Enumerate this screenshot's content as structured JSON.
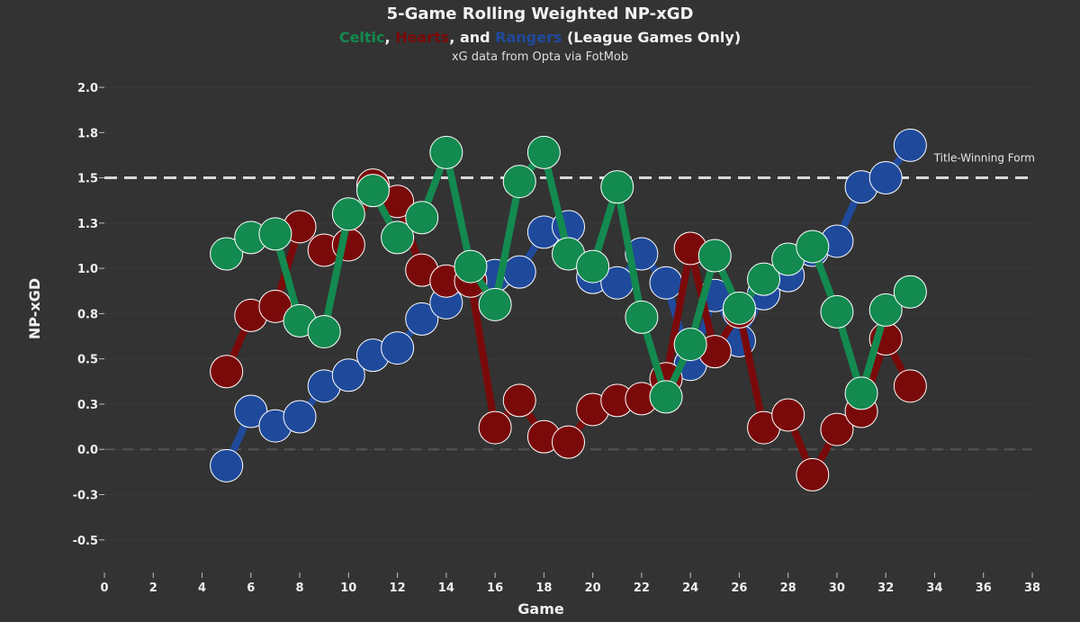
{
  "header": {
    "title": "5-Game Rolling Weighted NP-xGD",
    "subtitle_parts": [
      {
        "text": "Celtic",
        "color": "#138a4f"
      },
      {
        "text": ", ",
        "color": "#f2f2f2"
      },
      {
        "text": "Hearts",
        "color": "#7a0a0a"
      },
      {
        "text": ", and ",
        "color": "#f2f2f2"
      },
      {
        "text": "Rangers",
        "color": "#1f4a9c"
      },
      {
        "text": " (League Games Only)",
        "color": "#f2f2f2"
      }
    ],
    "source": "xG data from Opta via FotMob"
  },
  "chart_data": {
    "type": "line",
    "title": "5-Game Rolling Weighted NP-xGD",
    "xlabel": "Game",
    "ylabel": "NP-xGD",
    "xlim": [
      0,
      38
    ],
    "ylim": [
      -0.7,
      2.0
    ],
    "x_ticks": [
      0,
      2,
      4,
      6,
      8,
      10,
      12,
      14,
      16,
      18,
      20,
      22,
      24,
      26,
      28,
      30,
      32,
      34,
      36,
      38
    ],
    "y_ticks": [
      -0.5,
      -0.25,
      0.0,
      0.25,
      0.5,
      0.75,
      1.0,
      1.25,
      1.5,
      1.75,
      2.0
    ],
    "y_tick_labels": [
      "-0.5",
      "-0.3",
      "0.0",
      "0.3",
      "0.5",
      "0.8",
      "1.0",
      "1.3",
      "1.5",
      "1.8",
      "2.0"
    ],
    "reference_lines": [
      {
        "y": 1.5,
        "label": "Title-Winning Form",
        "style": "dashed",
        "color": "#d9d9d9"
      },
      {
        "y": 0.0,
        "label": "",
        "style": "dashed",
        "color": "#555555"
      }
    ],
    "series": [
      {
        "name": "Rangers",
        "color": "#1f4a9c",
        "x": [
          5,
          6,
          7,
          8,
          9,
          10,
          11,
          12,
          13,
          14,
          15,
          16,
          17,
          18,
          19,
          20,
          21,
          22,
          23,
          24,
          25,
          26,
          27,
          28,
          29,
          30,
          31,
          32,
          33
        ],
        "values": [
          -0.09,
          0.21,
          0.13,
          0.18,
          0.35,
          0.41,
          0.52,
          0.56,
          0.72,
          0.81,
          0.94,
          0.96,
          0.98,
          1.2,
          1.23,
          0.95,
          0.92,
          1.08,
          0.92,
          0.47,
          0.85,
          0.6,
          0.86,
          0.96,
          1.1,
          1.15,
          1.45,
          1.5,
          1.68
        ]
      },
      {
        "name": "Hearts",
        "color": "#7a0a0a",
        "x": [
          5,
          6,
          7,
          8,
          9,
          10,
          11,
          12,
          13,
          14,
          15,
          16,
          17,
          18,
          19,
          20,
          21,
          22,
          23,
          24,
          25,
          26,
          27,
          28,
          29,
          30,
          31,
          32,
          33
        ],
        "values": [
          0.43,
          0.74,
          0.79,
          1.23,
          1.1,
          1.13,
          1.46,
          1.37,
          0.99,
          0.93,
          0.93,
          0.12,
          0.27,
          0.07,
          0.04,
          0.22,
          0.27,
          0.28,
          0.39,
          1.11,
          0.54,
          0.76,
          0.12,
          0.19,
          -0.14,
          0.11,
          0.21,
          0.61,
          0.35
        ]
      },
      {
        "name": "Celtic",
        "color": "#138a4f",
        "x": [
          5,
          6,
          7,
          8,
          9,
          10,
          11,
          12,
          13,
          14,
          15,
          16,
          17,
          18,
          19,
          20,
          21,
          22,
          23,
          24,
          25,
          26,
          27,
          28,
          29,
          30,
          31,
          32,
          33
        ],
        "values": [
          1.08,
          1.17,
          1.19,
          0.71,
          0.65,
          1.3,
          1.43,
          1.17,
          1.28,
          1.64,
          1.01,
          0.8,
          1.48,
          1.64,
          1.08,
          1.01,
          1.45,
          0.73,
          0.29,
          0.58,
          1.07,
          0.78,
          0.94,
          1.05,
          1.12,
          0.76,
          0.31,
          0.77,
          0.87
        ]
      }
    ]
  }
}
